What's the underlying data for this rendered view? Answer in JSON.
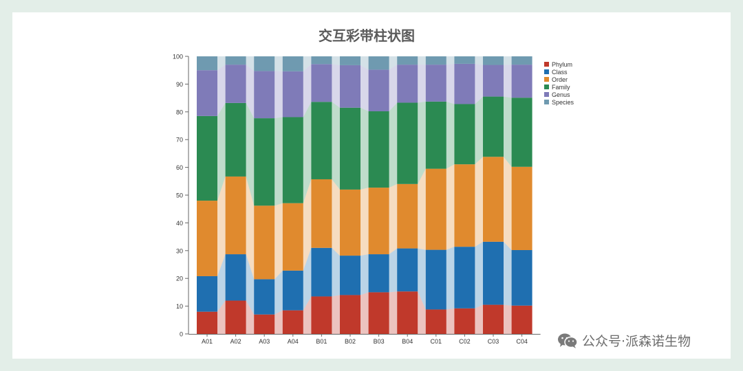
{
  "chart_data": {
    "type": "bar",
    "stacked": true,
    "title": "交互彩带柱状图",
    "categories": [
      "A01",
      "A02",
      "A03",
      "A04",
      "B01",
      "B02",
      "B03",
      "B04",
      "C01",
      "C02",
      "C03",
      "C04"
    ],
    "series": [
      {
        "name": "Phylum",
        "color": "#c0392b",
        "values": [
          8.0,
          12.0,
          7.0,
          8.5,
          13.5,
          14.0,
          15.0,
          15.3,
          8.8,
          9.2,
          10.5,
          10.2
        ]
      },
      {
        "name": "Class",
        "color": "#1f6fb0",
        "values": [
          12.8,
          16.7,
          12.7,
          14.3,
          17.5,
          14.2,
          13.7,
          15.5,
          21.5,
          22.2,
          22.7,
          20.0
        ]
      },
      {
        "name": "Order",
        "color": "#e08a2e",
        "values": [
          27.2,
          28.0,
          26.5,
          24.3,
          24.7,
          23.8,
          24.0,
          23.2,
          29.2,
          29.7,
          30.6,
          30.0
        ]
      },
      {
        "name": "Family",
        "color": "#2b8a52",
        "values": [
          30.5,
          26.5,
          31.5,
          31.0,
          27.9,
          29.5,
          27.5,
          29.3,
          24.2,
          21.7,
          21.7,
          24.9
        ]
      },
      {
        "name": "Genus",
        "color": "#7f7bb8",
        "values": [
          16.5,
          13.8,
          17.0,
          16.5,
          13.6,
          15.3,
          15.0,
          13.7,
          13.3,
          14.5,
          11.4,
          11.9
        ]
      },
      {
        "name": "Species",
        "color": "#6f9ab0",
        "values": [
          5.0,
          3.0,
          5.3,
          5.4,
          2.8,
          3.2,
          4.8,
          3.0,
          3.0,
          2.7,
          3.1,
          3.0
        ]
      }
    ],
    "ylim": [
      0,
      100
    ],
    "yticks": [
      0,
      10,
      20,
      30,
      40,
      50,
      60,
      70,
      80,
      90,
      100
    ],
    "xlabel": "",
    "ylabel": "",
    "legend": "top-right",
    "ribbons": true
  },
  "watermark": {
    "text": "公众号·派森诺生物",
    "icon": "wechat-icon"
  }
}
